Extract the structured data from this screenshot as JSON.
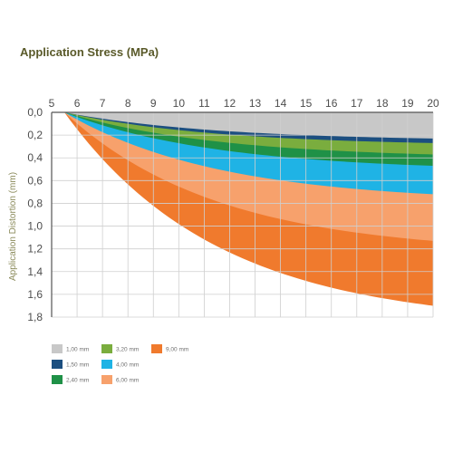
{
  "chart_data": {
    "type": "area",
    "title": "Application Stress (MPa)",
    "xlabel": "",
    "ylabel": "Application Distortion (mm)",
    "xlim": [
      5,
      20
    ],
    "ylim": [
      0,
      1.8
    ],
    "y_axis_inverted": true,
    "x_axis_position": "top",
    "x_ticks": [
      "5",
      "6",
      "7",
      "8",
      "9",
      "10",
      "11",
      "12",
      "13",
      "14",
      "15",
      "16",
      "17",
      "18",
      "19",
      "20"
    ],
    "y_ticks": [
      "0,0",
      "0,2",
      "0,4",
      "0,6",
      "0,8",
      "1,0",
      "1,2",
      "1,4",
      "1,6",
      "1,8"
    ],
    "grid": true,
    "legend_position": "bottom",
    "x": [
      5.5,
      20
    ],
    "series": [
      {
        "name": "1,00 mm",
        "color": "#c8c8c8",
        "values": [
          0,
          0.23
        ]
      },
      {
        "name": "1,50 mm",
        "color": "#1c4f80",
        "values": [
          0,
          0.27
        ]
      },
      {
        "name": "3,20 mm",
        "color": "#7aad3e",
        "values": [
          0,
          0.37
        ]
      },
      {
        "name": "2,40 mm",
        "color": "#1f9147",
        "values": [
          0,
          0.47
        ]
      },
      {
        "name": "4,00 mm",
        "color": "#1fb3e5",
        "values": [
          0,
          0.72
        ]
      },
      {
        "name": "6,00 mm",
        "color": "#f7a16c",
        "values": [
          0,
          1.13
        ]
      },
      {
        "name": "9,00 mm",
        "color": "#f07a2d",
        "values": [
          0,
          1.7
        ]
      }
    ],
    "legend": [
      {
        "label": "1,00 mm",
        "color": "#c8c8c8"
      },
      {
        "label": "1,50 mm",
        "color": "#1c4f80"
      },
      {
        "label": "2,40 mm",
        "color": "#1f9147"
      },
      {
        "label": "3,20 mm",
        "color": "#7aad3e"
      },
      {
        "label": "4,00 mm",
        "color": "#1fb3e5"
      },
      {
        "label": "6,00 mm",
        "color": "#f7a16c"
      },
      {
        "label": "9,00 mm",
        "color": "#f07a2d"
      }
    ]
  }
}
